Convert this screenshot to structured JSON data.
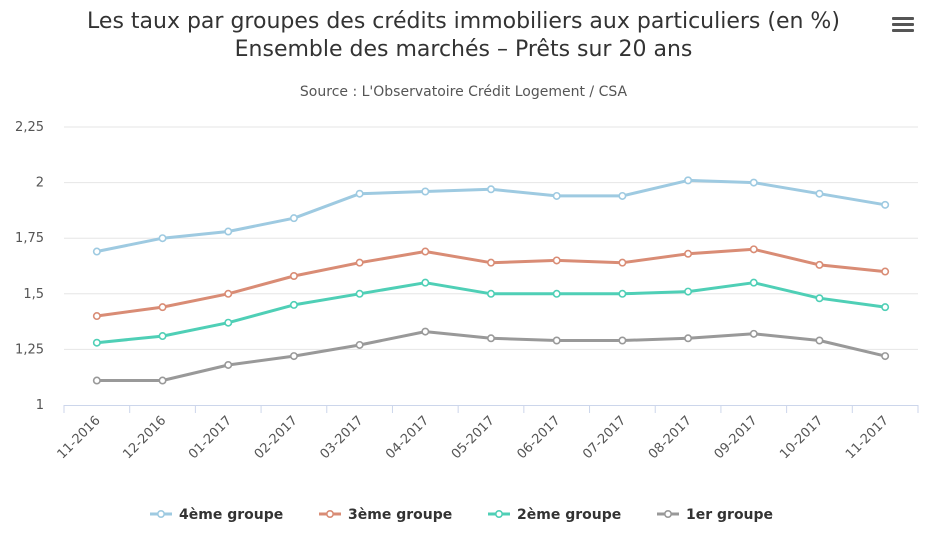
{
  "chart_data": {
    "type": "line",
    "title": "Les taux par groupes des crédits immobiliers aux particuliers (en %)",
    "title_line2": "Ensemble des marchés – Prêts sur 20 ans",
    "subtitle": "Source : L'Observatoire Crédit Logement / CSA",
    "xlabel": "",
    "ylabel": "",
    "categories": [
      "11-2016",
      "12-2016",
      "01-2017",
      "02-2017",
      "03-2017",
      "04-2017",
      "05-2017",
      "06-2017",
      "07-2017",
      "08-2017",
      "09-2017",
      "10-2017",
      "11-2017"
    ],
    "yticks": [
      "1",
      "1,25",
      "1,5",
      "1,75",
      "2",
      "2,25"
    ],
    "ylim": [
      1,
      2.25
    ],
    "grid": true,
    "legend_position": "bottom",
    "series": [
      {
        "name": "4ème groupe",
        "color": "#9ecae1",
        "values": [
          1.69,
          1.75,
          1.78,
          1.84,
          1.95,
          1.96,
          1.97,
          1.94,
          1.94,
          2.01,
          2.0,
          1.95,
          1.9
        ]
      },
      {
        "name": "3ème groupe",
        "color": "#d98c75",
        "values": [
          1.4,
          1.44,
          1.5,
          1.58,
          1.64,
          1.69,
          1.64,
          1.65,
          1.64,
          1.68,
          1.7,
          1.63,
          1.6
        ]
      },
      {
        "name": "2ème groupe",
        "color": "#4fcfb6",
        "values": [
          1.28,
          1.31,
          1.37,
          1.45,
          1.5,
          1.55,
          1.5,
          1.5,
          1.5,
          1.51,
          1.55,
          1.48,
          1.44
        ]
      },
      {
        "name": "1er groupe",
        "color": "#999999",
        "values": [
          1.11,
          1.11,
          1.18,
          1.22,
          1.27,
          1.33,
          1.3,
          1.29,
          1.29,
          1.3,
          1.32,
          1.29,
          1.22
        ]
      }
    ]
  },
  "menu_icon": "hamburger-menu-icon"
}
